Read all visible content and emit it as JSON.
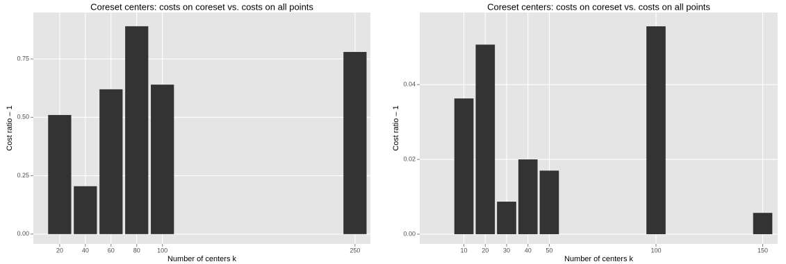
{
  "chart_data": [
    {
      "type": "bar",
      "title": "Coreset centers: costs on coreset vs. costs on all points",
      "x_label": "Number of centers k",
      "y_label": "Cost ratio – 1",
      "x": [
        20,
        40,
        60,
        80,
        100,
        250
      ],
      "values": [
        0.51,
        0.205,
        0.62,
        0.89,
        0.64,
        0.78
      ],
      "bar_width": 18,
      "color": "#333333",
      "xlim": [
        -0.5,
        262
      ],
      "ylim": [
        -0.042,
        0.949
      ],
      "xticks": [
        20,
        40,
        60,
        80,
        100,
        250
      ],
      "yticks": [
        {
          "value": 0,
          "label": "0.00"
        },
        0.25,
        {
          "value": 0.5,
          "label": "0.50"
        },
        0.75
      ],
      "grid": true
    },
    {
      "type": "bar",
      "title": "Coreset centers: costs on coreset vs. costs on all points",
      "x_label": "Number of centers k",
      "y_label": "Cost ratio – 1",
      "x": [
        10,
        20,
        30,
        40,
        50,
        100,
        150
      ],
      "values": [
        0.0363,
        0.0507,
        0.0087,
        0.02,
        0.017,
        0.0556,
        0.0057
      ],
      "bar_width": 9,
      "color": "#333333",
      "xlim": [
        -10.7,
        157
      ],
      "ylim": [
        -0.0026,
        0.0593
      ],
      "xticks": [
        10,
        20,
        30,
        40,
        50,
        100,
        150
      ],
      "yticks": [
        {
          "value": 0,
          "label": "0.00"
        },
        {
          "value": 0.02,
          "label": "0.02"
        },
        {
          "value": 0.04,
          "label": "0.04"
        }
      ],
      "grid": true
    }
  ]
}
